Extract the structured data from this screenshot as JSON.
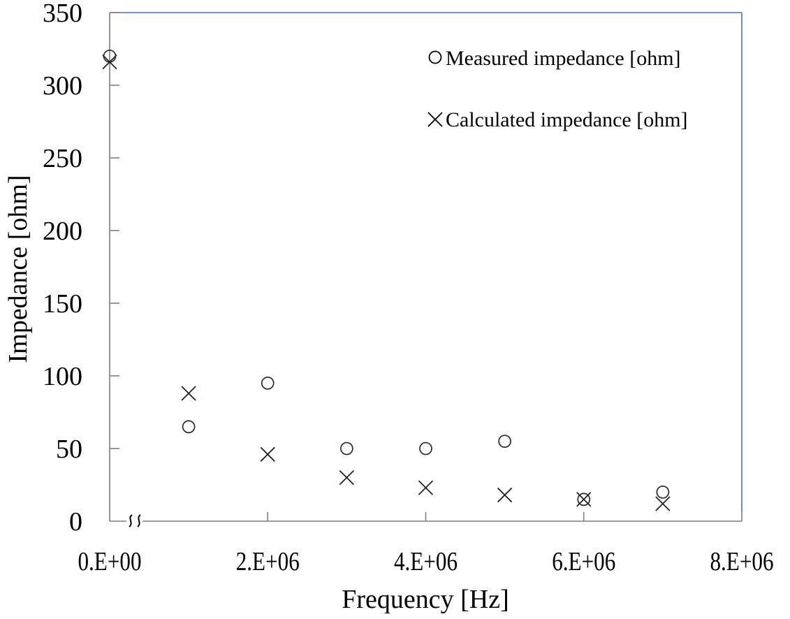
{
  "chart_data": {
    "type": "scatter",
    "title": "",
    "xlabel": "Frequency [Hz]",
    "ylabel": "Impedance [ohm]",
    "xlim": [
      0,
      8000000
    ],
    "ylim": [
      0,
      350
    ],
    "grid": false,
    "legend_position": "upper right (inside)",
    "x_axis_break": "≈ between 0 and 1.E+06",
    "x_ticks": [
      0,
      2000000,
      4000000,
      6000000,
      8000000
    ],
    "x_tick_labels": [
      "0.E+00",
      "2.E+06",
      "4.E+06",
      "6.E+06",
      "8.E+06"
    ],
    "y_ticks": [
      0,
      50,
      100,
      150,
      200,
      250,
      300,
      350
    ],
    "y_tick_labels": [
      "0",
      "50",
      "100",
      "150",
      "200",
      "250",
      "300",
      "350"
    ],
    "x": [
      0,
      1000000,
      2000000,
      3000000,
      4000000,
      5000000,
      6000000,
      7000000
    ],
    "series": [
      {
        "name": "Measured impedance [ohm]",
        "marker": "circle",
        "values": [
          320,
          65,
          95,
          50,
          50,
          55,
          15,
          20
        ]
      },
      {
        "name": "Calculated impedance [ohm]",
        "marker": "cross",
        "values": [
          316,
          88,
          46,
          30,
          23,
          18,
          15,
          12
        ]
      }
    ]
  },
  "legend": {
    "measured": "Measured impedance [ohm]",
    "calculated": "Calculated impedance [ohm]"
  },
  "axes": {
    "xlabel": "Frequency [Hz]",
    "ylabel": "Impedance [ohm]",
    "break_symbol": "≈"
  },
  "colors": {
    "frame_top_right": "#4472c4",
    "axis": "#7f7f7f",
    "marker": "#000000"
  }
}
